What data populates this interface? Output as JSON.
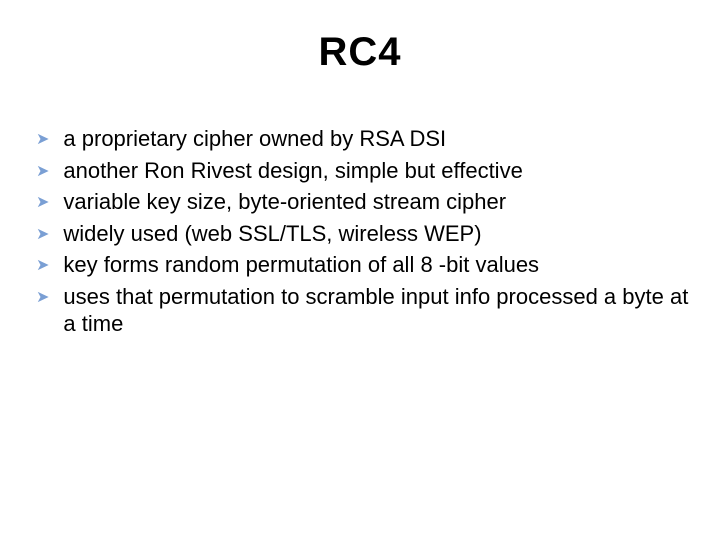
{
  "title": "RC4",
  "title_fontsize": 40,
  "title_color": "#000000",
  "body_fontsize": 22,
  "body_color": "#000000",
  "bullet_color": "#7a9fd4",
  "bullet_glyph": "➤",
  "background_color": "#ffffff",
  "bullets": [
    "a proprietary cipher owned by RSA DSI",
    "another Ron Rivest design, simple but effective",
    "variable key size, byte-oriented stream cipher",
    "widely used (web SSL/TLS, wireless WEP)",
    "key forms random permutation of all 8 -bit values",
    "uses that permutation to scramble input info processed a byte at a time"
  ]
}
